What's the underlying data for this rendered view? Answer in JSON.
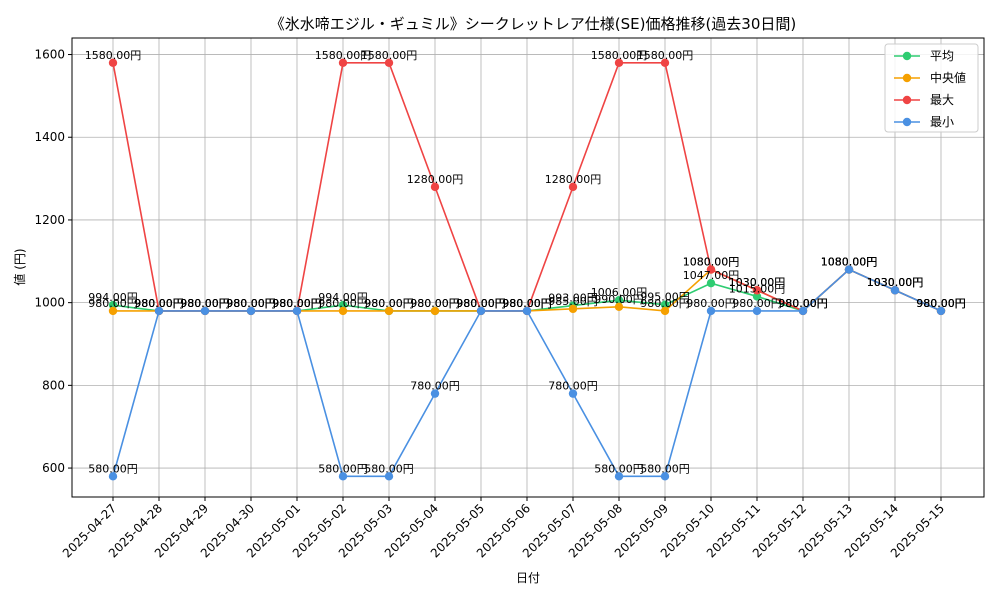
{
  "chart_data": {
    "type": "line",
    "title": "《氷水啼エジル・ギュミル》シークレットレア仕様(SE)価格推移(過去30日間)",
    "xlabel": "日付",
    "ylabel": "値 (円)",
    "ylim": [
      530,
      1640
    ],
    "yticks": [
      600,
      800,
      1000,
      1200,
      1400,
      1600
    ],
    "grid": true,
    "legend_position": "top-right",
    "categories": [
      "2025-04-27",
      "2025-04-28",
      "2025-04-29",
      "2025-04-30",
      "2025-05-01",
      "2025-05-02",
      "2025-05-03",
      "2025-05-04",
      "2025-05-05",
      "2025-05-06",
      "2025-05-07",
      "2025-05-08",
      "2025-05-09",
      "2025-05-10",
      "2025-05-11",
      "2025-05-12",
      "2025-05-13",
      "2025-05-14",
      "2025-05-15"
    ],
    "series": [
      {
        "name": "平均",
        "color": "#2ecc71",
        "values": [
          994,
          980,
          980,
          980,
          980,
          994,
          980,
          980,
          980,
          980,
          993,
          1006,
          995,
          1047,
          1015,
          980,
          1080,
          1030,
          980
        ],
        "labels": [
          "994.00円",
          "980.00円",
          "980.00円",
          "980.00円",
          "980.00円",
          "994.00円",
          "980.00円",
          "980.00円",
          "980.00円",
          "980.00円",
          "993.00円",
          "1006.00円",
          "995.00円",
          "1047.00円",
          "1015.00円",
          "980.00円",
          "1080.00円",
          "1030.00円",
          "980.00円"
        ]
      },
      {
        "name": "中央値",
        "color": "#f5a000",
        "values": [
          980,
          980,
          980,
          980,
          980,
          980,
          980,
          980,
          980,
          980,
          985,
          990,
          980,
          1080,
          1030,
          980,
          1080,
          1030,
          980
        ],
        "labels": [
          "980.00円",
          "980.00円",
          "980.00円",
          "980.00円",
          "980.00円",
          "980.00円",
          "980.00円",
          "980.00円",
          "980.00円",
          "980.00円",
          "985.00円",
          "990.00円",
          "980.00円",
          "1080.00円",
          "1030.00円",
          "980.00円",
          "1080.00円",
          "1030.00円",
          "980.00円"
        ]
      },
      {
        "name": "最大",
        "color": "#ef4444",
        "values": [
          1580,
          980,
          980,
          980,
          980,
          1580,
          1580,
          1280,
          980,
          980,
          1280,
          1580,
          1580,
          1080,
          1030,
          980,
          1080,
          1030,
          980
        ],
        "labels": [
          "1580.00円",
          "980.00円",
          "980.00円",
          "980.00円",
          "980.00円",
          "1580.00円",
          "1580.00円",
          "1280.00円",
          "980.00円",
          "980.00円",
          "1280.00円",
          "1580.00円",
          "1580.00円",
          "1080.00円",
          "1030.00円",
          "980.00円",
          "1080.00円",
          "1030.00円",
          "980.00円"
        ]
      },
      {
        "name": "最小",
        "color": "#4a90e2",
        "values": [
          580,
          980,
          980,
          980,
          980,
          580,
          580,
          780,
          980,
          980,
          780,
          580,
          580,
          980,
          980,
          980,
          1080,
          1030,
          980
        ],
        "labels": [
          "580.00円",
          "980.00円",
          "980.00円",
          "980.00円",
          "980.00円",
          "580.00円",
          "580.00円",
          "780.00円",
          "980.00円",
          "980.00円",
          "780.00円",
          "580.00円",
          "580.00円",
          "980.00円",
          "980.00円",
          "980.00円",
          "1080.00円",
          "1030.00円",
          "980.00円"
        ]
      }
    ]
  }
}
